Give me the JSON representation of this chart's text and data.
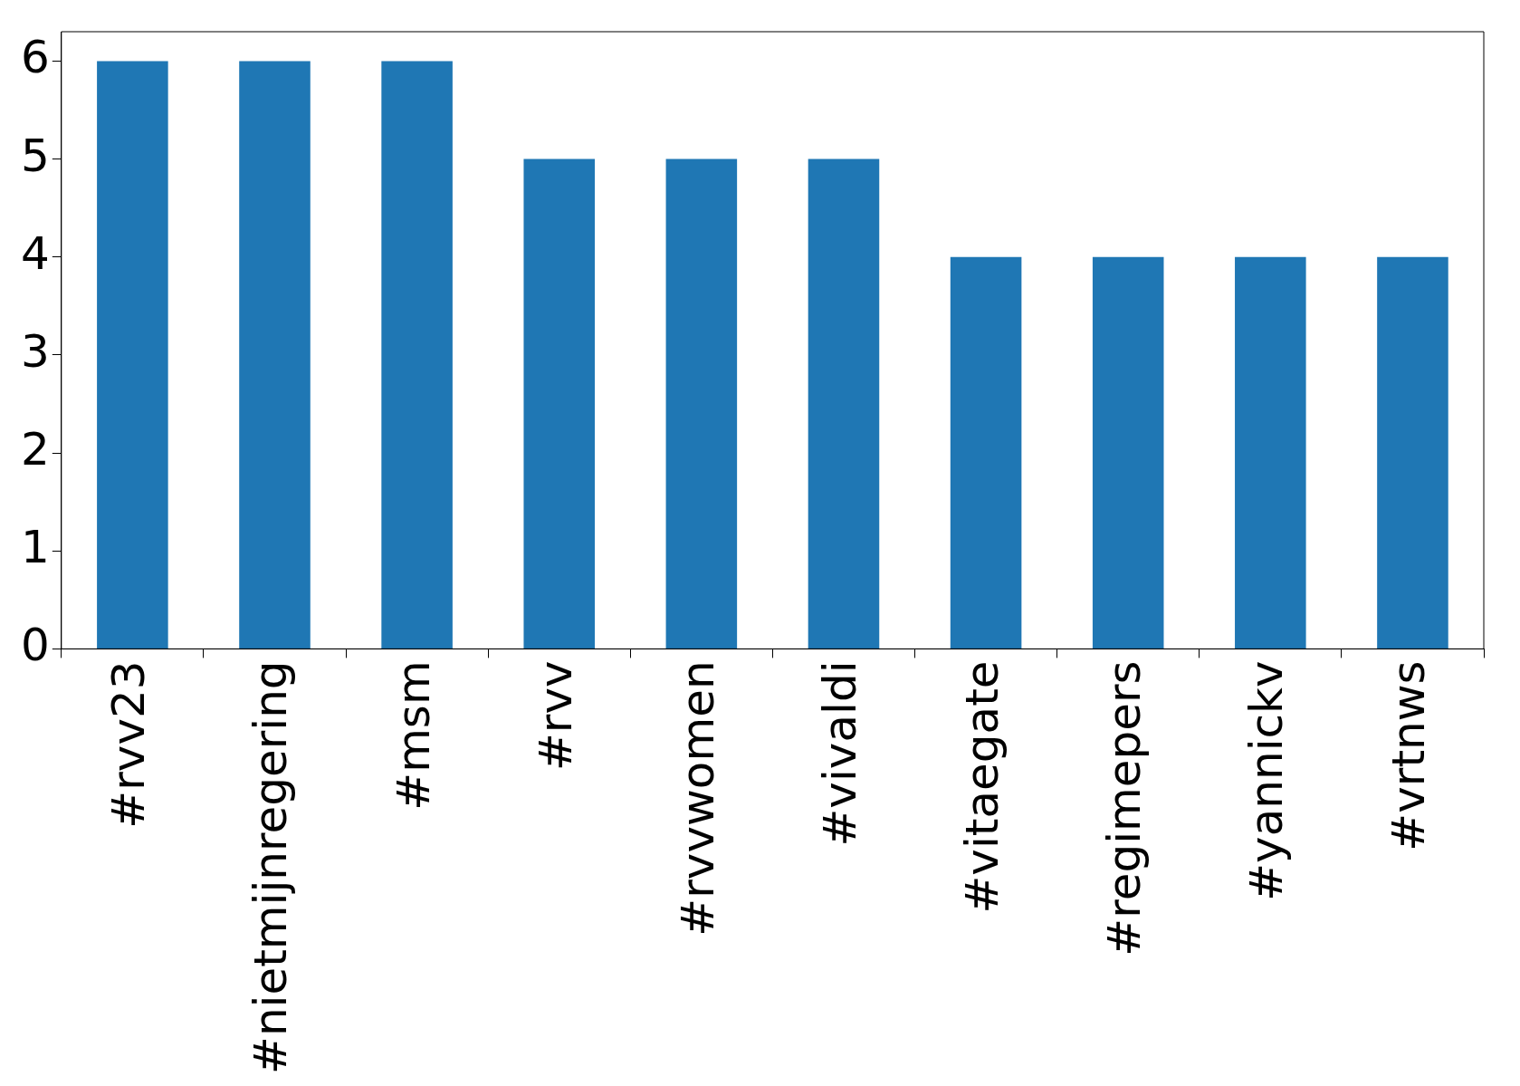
{
  "chart_data": {
    "type": "bar",
    "categories": [
      "#rvv23",
      "#nietmijnregering",
      "#msm",
      "#rvv",
      "#rvvwomen",
      "#vivaldi",
      "#vitaegate",
      "#regimepers",
      "#yannickv",
      "#vrtnws"
    ],
    "values": [
      6,
      6,
      6,
      5,
      5,
      5,
      4,
      4,
      4,
      4
    ],
    "color": "#1f77b4",
    "ylim": [
      0,
      6.3
    ],
    "yticks": [
      0,
      1,
      2,
      3,
      4,
      5,
      6
    ],
    "grid": false,
    "legend": false
  }
}
